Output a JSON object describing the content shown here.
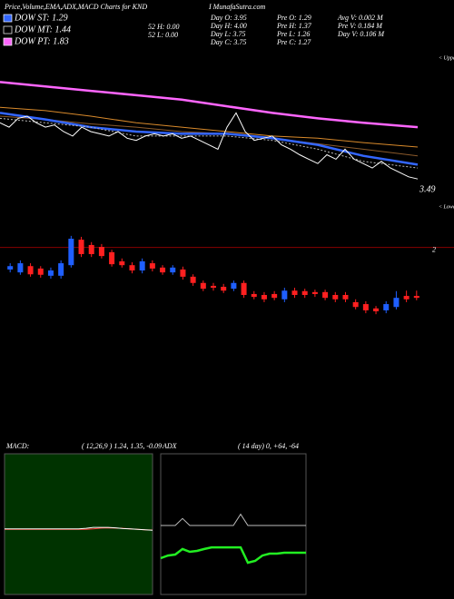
{
  "header": {
    "title": "Price,Volume,EMA,ADX,MACD Charts for KND",
    "site": "I MunafaSutra.com",
    "legend": [
      {
        "label": "DOW ST: 1.29",
        "color": "#3366ff"
      },
      {
        "label": "DOW MT: 1.44",
        "color": "#000000"
      },
      {
        "label": "DOW PT: 1.83",
        "color": "#ff66ff"
      }
    ],
    "stats": [
      [
        "52 H: 0.00",
        "52 L: 0.00"
      ],
      [
        "Day O: 3.95",
        "Day H: 4.00",
        "Day L: 3.75",
        "Day C: 3.75"
      ],
      [
        "Pre O: 1.29",
        "Pre H: 1.37",
        "Pre L: 1.26",
        "Pre C: 1.27"
      ],
      [
        "Avg V: 0.002 M",
        "Pre V: 0.184 M",
        "Day V: 0.106 M"
      ]
    ]
  },
  "chart_data": [
    {
      "type": "line",
      "xlim": [
        0,
        46
      ],
      "ylim": [
        3.22,
        4.62
      ],
      "annotations": [
        "< Upper",
        "< Lower"
      ],
      "series": [
        {
          "color": "#ff66ff",
          "style": "thick",
          "x": [
            0,
            5,
            10,
            15,
            20,
            25,
            30,
            35,
            40,
            46
          ],
          "values": [
            4.37,
            4.33,
            4.29,
            4.25,
            4.21,
            4.15,
            4.09,
            4.04,
            4.0,
            3.96
          ]
        },
        {
          "color": "#d98a2b",
          "style": "thin",
          "x": [
            0,
            5,
            10,
            15,
            20,
            25,
            30,
            35,
            40,
            46
          ],
          "values": [
            4.14,
            4.11,
            4.06,
            4.0,
            3.96,
            3.92,
            3.88,
            3.86,
            3.82,
            3.78
          ]
        },
        {
          "color": "#8b5a2b",
          "style": "thin",
          "x": [
            0,
            5,
            10,
            15,
            20,
            25,
            30,
            35,
            40,
            46
          ],
          "values": [
            4.06,
            4.03,
            3.99,
            3.96,
            3.92,
            3.9,
            3.86,
            3.81,
            3.76,
            3.7
          ]
        },
        {
          "color": "#3366ff",
          "style": "thick",
          "x": [
            0,
            5,
            10,
            15,
            20,
            25,
            30,
            35,
            40,
            46
          ],
          "values": [
            4.09,
            4.03,
            3.96,
            3.92,
            3.9,
            3.9,
            3.86,
            3.8,
            3.7,
            3.62
          ]
        },
        {
          "color": "#bbbbbb",
          "style": "dotted",
          "x": [
            0,
            5,
            10,
            15,
            20,
            25,
            30,
            35,
            40,
            46
          ],
          "values": [
            4.04,
            4.0,
            3.96,
            3.88,
            3.88,
            3.88,
            3.84,
            3.76,
            3.65,
            3.59
          ]
        },
        {
          "color": "#ffffff",
          "style": "thin",
          "x": [
            0,
            1,
            2,
            3,
            4,
            5,
            6,
            7,
            8,
            9,
            10,
            11,
            12,
            13,
            14,
            15,
            16,
            17,
            18,
            19,
            20,
            21,
            22,
            23,
            24,
            25,
            26,
            27,
            28,
            29,
            30,
            31,
            32,
            33,
            34,
            35,
            36,
            37,
            38,
            39,
            40,
            41,
            42,
            43,
            44,
            45,
            46
          ],
          "values": [
            4.0,
            3.96,
            4.04,
            4.06,
            4.0,
            3.96,
            3.98,
            3.92,
            3.88,
            3.96,
            3.92,
            3.9,
            3.88,
            3.92,
            3.86,
            3.84,
            3.88,
            3.9,
            3.88,
            3.9,
            3.86,
            3.88,
            3.84,
            3.8,
            3.76,
            3.96,
            4.09,
            3.92,
            3.84,
            3.86,
            3.88,
            3.8,
            3.76,
            3.71,
            3.67,
            3.63,
            3.71,
            3.67,
            3.76,
            3.67,
            3.63,
            3.59,
            3.65,
            3.59,
            3.55,
            3.51,
            3.49
          ]
        }
      ]
    },
    {
      "type": "candlestick",
      "ylim": [
        0.5,
        2.2
      ],
      "yticks": [
        2
      ],
      "up_color": "#1f5fff",
      "down_color": "#ff2020",
      "open": [
        1.54,
        1.48,
        1.61,
        1.56,
        1.41,
        1.41,
        1.63,
        2.16,
        2.05,
        2.01,
        1.9,
        1.71,
        1.63,
        1.52,
        1.67,
        1.58,
        1.48,
        1.54,
        1.39,
        1.26,
        1.2,
        1.18,
        1.14,
        1.26,
        1.03,
        1.01,
        1.03,
        0.92,
        1.1,
        1.09,
        1.07,
        1.07,
        1.01,
        1.01,
        0.86,
        0.82,
        0.73,
        0.69,
        0.76,
        0.99,
        0.99
      ],
      "high": [
        1.67,
        1.73,
        1.67,
        1.61,
        1.58,
        1.73,
        2.24,
        2.22,
        2.11,
        2.07,
        1.95,
        1.77,
        1.69,
        1.77,
        1.73,
        1.63,
        1.63,
        1.6,
        1.44,
        1.31,
        1.26,
        1.24,
        1.31,
        1.31,
        1.09,
        1.07,
        1.09,
        1.16,
        1.16,
        1.14,
        1.12,
        1.12,
        1.07,
        1.07,
        0.92,
        0.88,
        0.78,
        0.88,
        1.09,
        1.1,
        1.1
      ],
      "low": [
        1.48,
        1.43,
        1.39,
        1.37,
        1.35,
        1.35,
        1.58,
        1.8,
        1.8,
        1.77,
        1.6,
        1.58,
        1.46,
        1.46,
        1.5,
        1.43,
        1.43,
        1.33,
        1.2,
        1.09,
        1.1,
        1.05,
        1.09,
        0.95,
        0.92,
        0.86,
        0.9,
        0.86,
        0.95,
        0.95,
        0.97,
        0.9,
        0.86,
        0.86,
        0.71,
        0.63,
        0.61,
        0.63,
        0.71,
        0.86,
        0.9
      ],
      "close": [
        1.61,
        1.67,
        1.44,
        1.43,
        1.52,
        1.67,
        2.18,
        1.86,
        1.86,
        1.82,
        1.65,
        1.63,
        1.52,
        1.71,
        1.56,
        1.48,
        1.58,
        1.39,
        1.26,
        1.14,
        1.16,
        1.1,
        1.26,
        1.01,
        0.97,
        0.92,
        0.95,
        1.1,
        1.01,
        1.01,
        1.03,
        0.95,
        0.92,
        0.92,
        0.76,
        0.69,
        0.67,
        0.82,
        0.95,
        0.92,
        0.95
      ]
    },
    {
      "type": "line",
      "label": "MACD:",
      "params": "( 12,26,9 ) 1.24, 1.35, -0.09",
      "background": "#003300",
      "xlim": [
        0,
        20
      ],
      "ylim": [
        -1.5,
        4.5
      ],
      "series": [
        {
          "color": "#ff3333",
          "style": "thin",
          "x": [
            0,
            1,
            2,
            3,
            4,
            5,
            6,
            7,
            8,
            9,
            10,
            11,
            12,
            13,
            14,
            15,
            16,
            17,
            18,
            19,
            20
          ],
          "values": [
            1.28,
            1.28,
            1.28,
            1.28,
            1.28,
            1.28,
            1.28,
            1.28,
            1.28,
            1.28,
            1.28,
            1.28,
            1.3,
            1.33,
            1.34,
            1.33,
            1.32,
            1.3,
            1.28,
            1.26,
            1.25
          ]
        },
        {
          "color": "#ffffff",
          "style": "thin",
          "x": [
            0,
            1,
            2,
            3,
            4,
            5,
            6,
            7,
            8,
            9,
            10,
            11,
            12,
            13,
            14,
            15,
            16,
            17,
            18,
            19,
            20
          ],
          "values": [
            1.3,
            1.3,
            1.3,
            1.3,
            1.3,
            1.3,
            1.3,
            1.3,
            1.3,
            1.3,
            1.3,
            1.32,
            1.36,
            1.36,
            1.36,
            1.34,
            1.31,
            1.3,
            1.28,
            1.26,
            1.24
          ]
        }
      ]
    },
    {
      "type": "line",
      "label": "ADX",
      "params": "( 14 day) 0, +64, -64",
      "background": "#000000",
      "xlim": [
        0,
        20
      ],
      "ylim": [
        0,
        100
      ],
      "series": [
        {
          "color": "#bbbbbb",
          "style": "thin",
          "x": [
            0,
            1,
            2,
            3,
            4,
            5,
            6,
            7,
            8,
            9,
            10,
            11,
            12,
            13,
            14,
            15,
            16,
            17,
            18,
            19,
            20
          ],
          "values": [
            49,
            49,
            49,
            54,
            49,
            49,
            49,
            49,
            49,
            49,
            49,
            57,
            49,
            49,
            49,
            49,
            49,
            49,
            49,
            49,
            49
          ]
        },
        {
          "color": "#22ee22",
          "style": "thick",
          "x": [
            0,
            1,
            2,
            3,
            4,
            5,
            6,
            7,
            8,
            9,
            10,
            11,
            12,
            13,
            14,
            15,
            16,
            17,
            18,
            19,
            20
          ],
          "values": [
            25.8,
            27.7,
            28.4,
            32.3,
            30.3,
            31.0,
            32.3,
            33.5,
            33.5,
            33.5,
            33.5,
            33.5,
            22.6,
            23.9,
            27.7,
            29.0,
            29.0,
            29.7,
            29.7,
            29.7,
            29.7
          ]
        }
      ]
    }
  ]
}
